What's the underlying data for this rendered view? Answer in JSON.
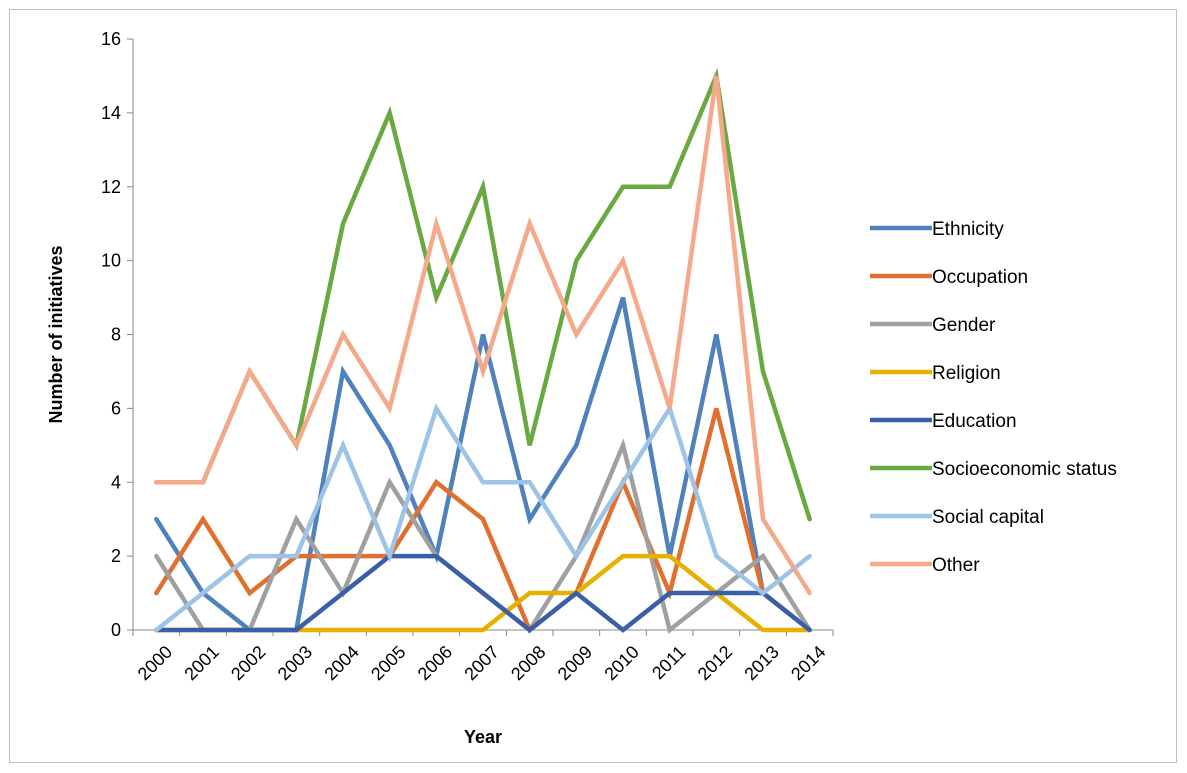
{
  "chart_data": {
    "type": "line",
    "title": "",
    "xlabel": "Year",
    "ylabel": "Number of initiatives",
    "ylim": [
      0,
      16
    ],
    "yticks": [
      "0",
      "2",
      "4",
      "6",
      "8",
      "10",
      "12",
      "14",
      "16"
    ],
    "categories": [
      "2000",
      "2001",
      "2002",
      "2003",
      "2004",
      "2005",
      "2006",
      "2007",
      "2008",
      "2009",
      "2010",
      "2011",
      "2012",
      "2013",
      "2014"
    ],
    "grid": false,
    "legend_position": "right",
    "series": [
      {
        "name": "Ethnicity",
        "color": "#4f81bd",
        "values": [
          3,
          1,
          0,
          0,
          7,
          5,
          2,
          8,
          3,
          5,
          9,
          2,
          8,
          1,
          0
        ]
      },
      {
        "name": "Occupation",
        "color": "#e0702f",
        "values": [
          1,
          3,
          1,
          2,
          2,
          2,
          4,
          3,
          0,
          1,
          4,
          1,
          6,
          1,
          0
        ]
      },
      {
        "name": "Gender",
        "color": "#a0a0a0",
        "values": [
          2,
          0,
          0,
          3,
          1,
          4,
          2,
          1,
          0,
          2,
          5,
          0,
          1,
          2,
          0
        ]
      },
      {
        "name": "Religion",
        "color": "#e6b000",
        "values": [
          0,
          0,
          0,
          0,
          0,
          0,
          0,
          0,
          1,
          1,
          2,
          2,
          1,
          0,
          0
        ]
      },
      {
        "name": "Education",
        "color": "#3a5ea8",
        "values": [
          0,
          0,
          0,
          0,
          1,
          2,
          2,
          1,
          0,
          1,
          0,
          1,
          1,
          1,
          0
        ]
      },
      {
        "name": "Socioeconomic status",
        "color": "#6aa841",
        "values": [
          4,
          4,
          7,
          5,
          11,
          14,
          9,
          12,
          5,
          10,
          12,
          12,
          15,
          7,
          3
        ]
      },
      {
        "name": "Social capital",
        "color": "#9dc3e6",
        "values": [
          0,
          1,
          2,
          2,
          5,
          2,
          6,
          4,
          4,
          2,
          4,
          6,
          2,
          1,
          2
        ]
      },
      {
        "name": "Other",
        "color": "#f4a98a",
        "values": [
          4,
          4,
          7,
          5,
          8,
          6,
          11,
          7,
          11,
          8,
          10,
          6,
          15,
          3,
          1
        ]
      }
    ]
  }
}
